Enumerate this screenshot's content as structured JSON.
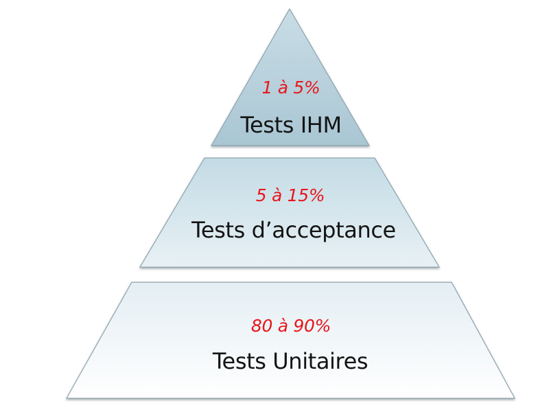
{
  "pyramid": {
    "tiers": [
      {
        "percentage": "1 à 5%",
        "label": "Tests IHM"
      },
      {
        "percentage": "5 à 15%",
        "label": "Tests d’acceptance"
      },
      {
        "percentage": "80 à 90%",
        "label": "Tests Unitaires"
      }
    ]
  },
  "colors": {
    "percentage_text": "#e8161c",
    "label_text": "#141414",
    "tier_top_fill": "#b7d1dd",
    "tier_middle_fill": "#d3e5ec",
    "tier_bottom_fill": "#f1f6f9",
    "tier_edge": "#7f8d94"
  }
}
